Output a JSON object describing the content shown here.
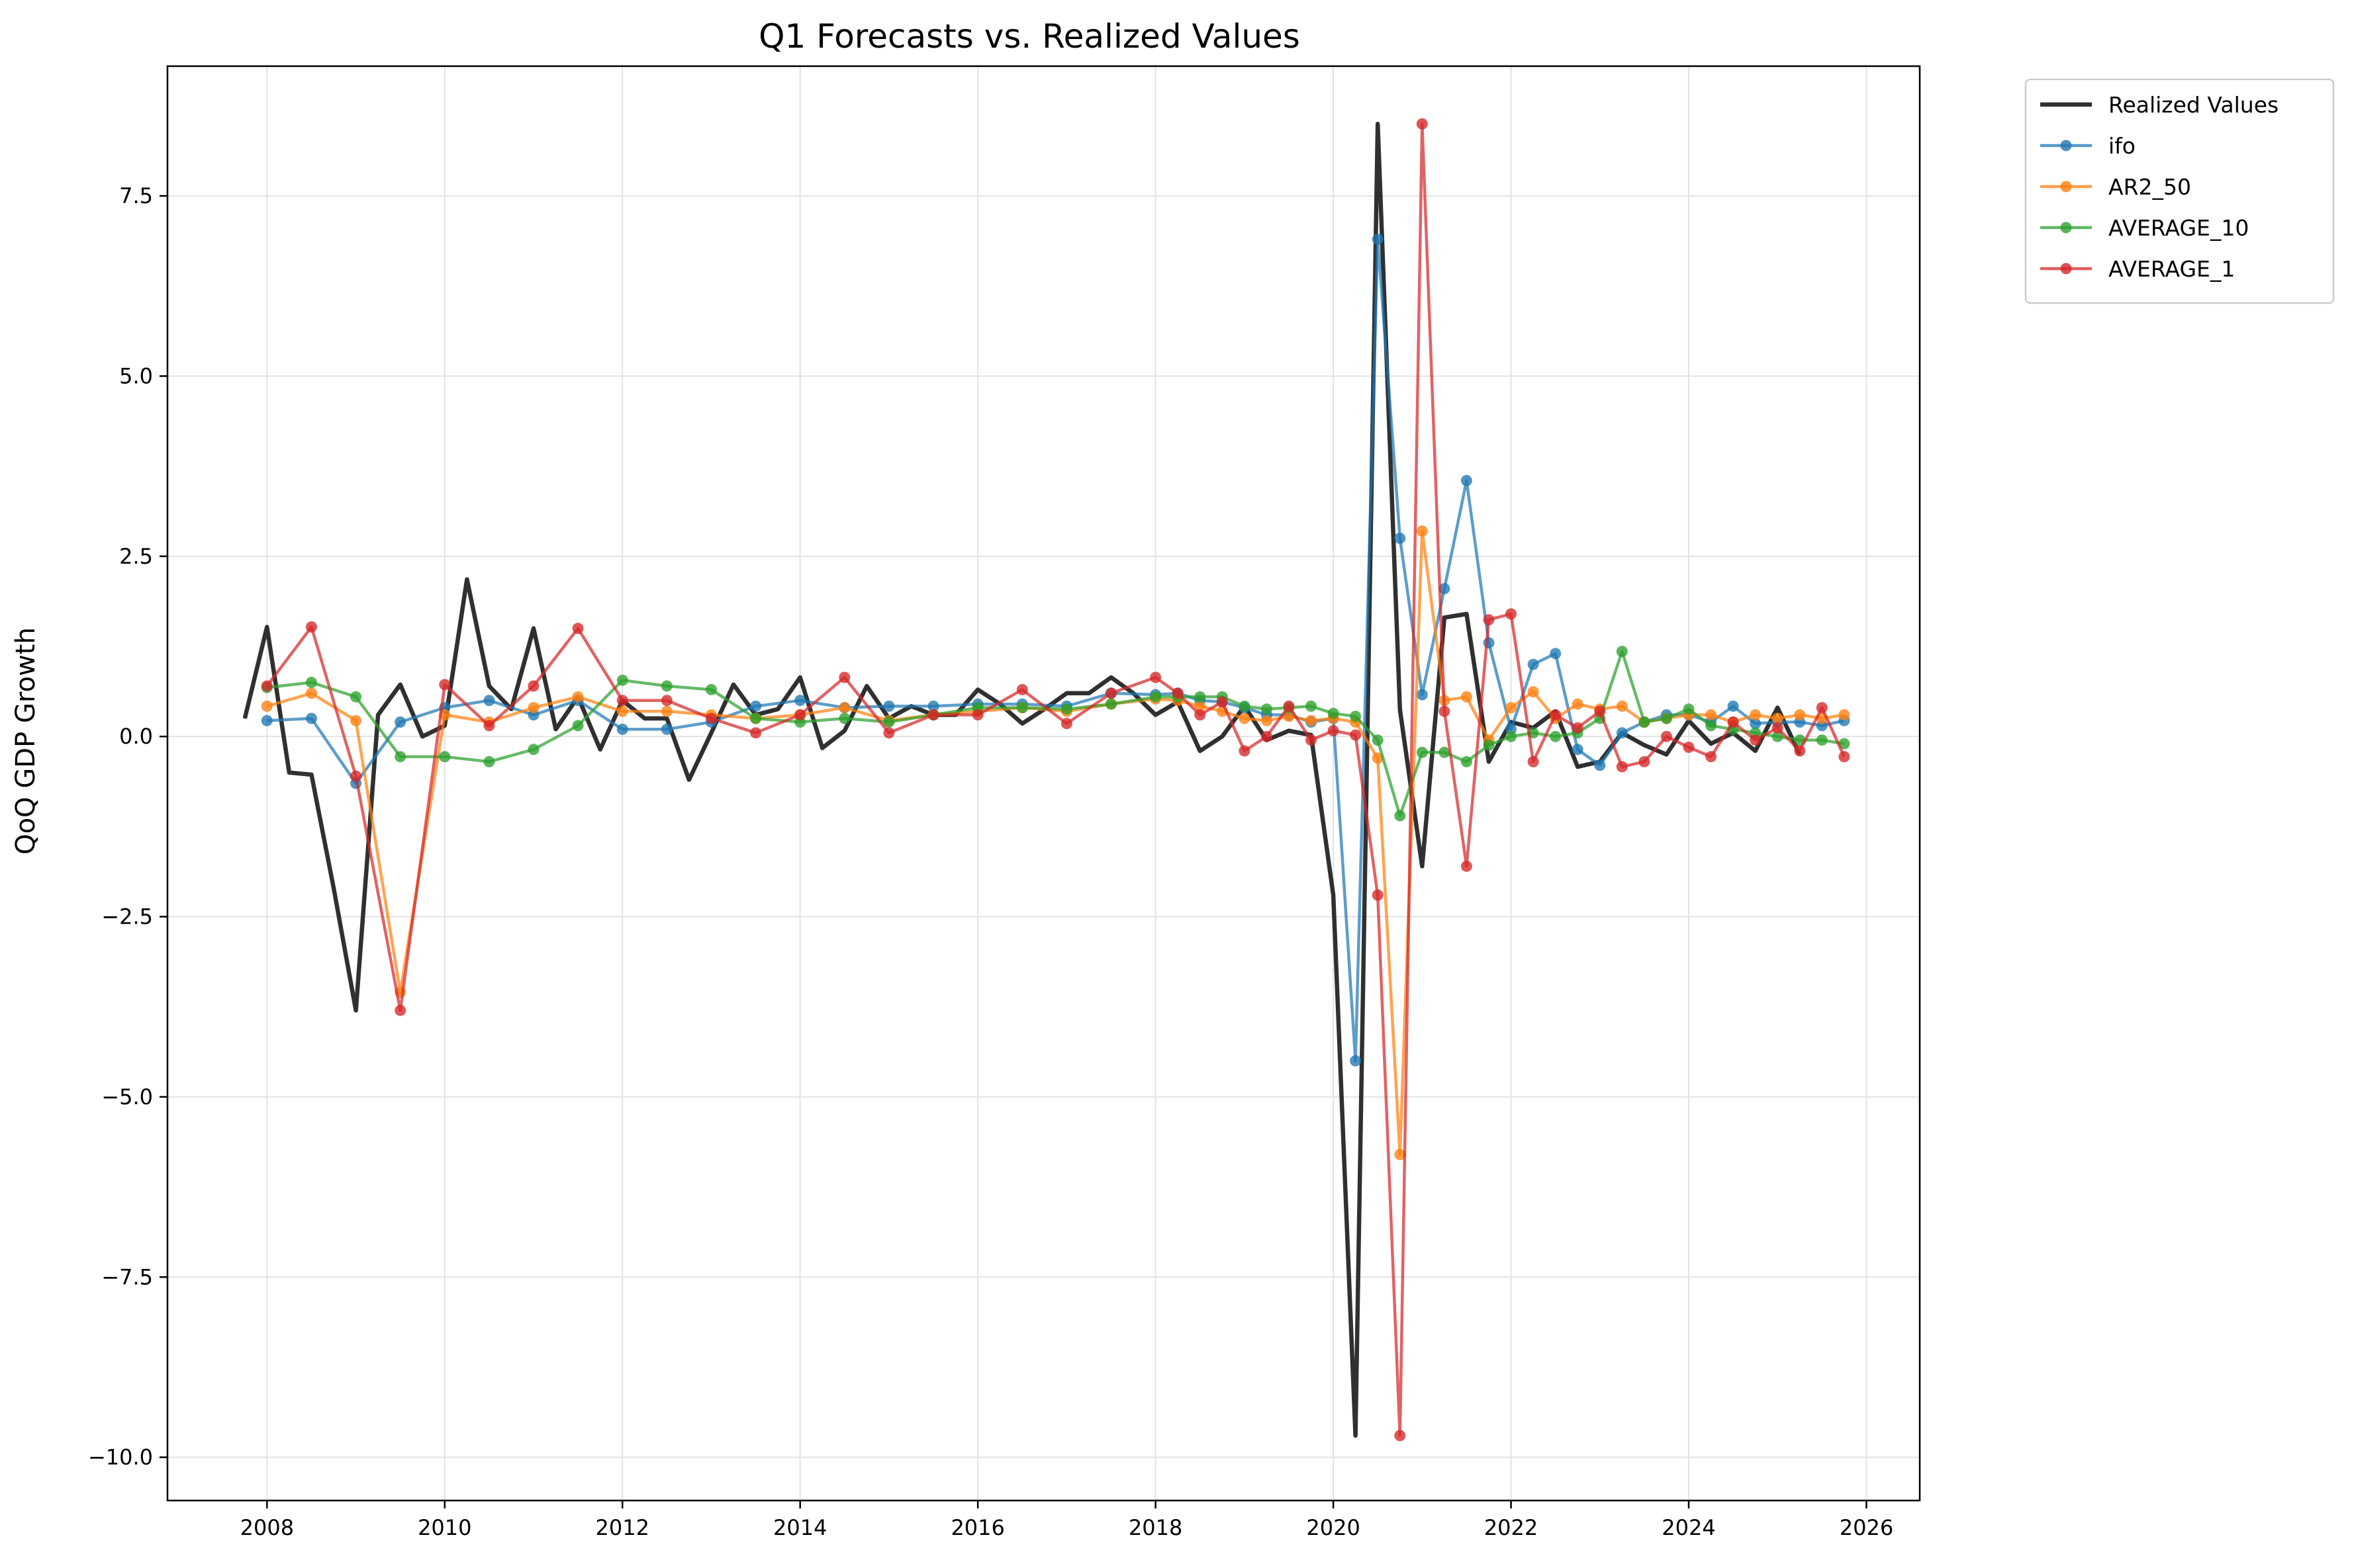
{
  "chart_data": {
    "type": "line",
    "title": "Q1 Forecasts vs. Realized Values",
    "xlabel": "",
    "ylabel": "QoQ GDP Growth",
    "xlim": [
      2006.88,
      2026.6
    ],
    "ylim": [
      -10.6,
      9.3
    ],
    "x_ticks": [
      2008,
      2010,
      2012,
      2014,
      2016,
      2018,
      2020,
      2022,
      2024,
      2026
    ],
    "x_tick_labels": [
      "2008",
      "2010",
      "2012",
      "2014",
      "2016",
      "2018",
      "2020",
      "2022",
      "2024",
      "2026"
    ],
    "y_ticks": [
      -10,
      -7.5,
      -5,
      -2.5,
      0,
      2.5,
      5,
      7.5
    ],
    "y_tick_labels": [
      "−10.0",
      "−7.5",
      "−5.0",
      "−2.5",
      "0.0",
      "2.5",
      "5.0",
      "7.5"
    ],
    "grid": true,
    "legend_position": "outside-top-right",
    "series": [
      {
        "name": "Realized Values",
        "color": "#1a1a1a",
        "style": "line",
        "points": [
          [
            2007.75,
            0.25
          ],
          [
            2008.0,
            1.52
          ],
          [
            2008.25,
            -0.5
          ],
          [
            2008.5,
            -0.53
          ],
          [
            2008.75,
            -2.1
          ],
          [
            2009.0,
            -3.8
          ],
          [
            2009.25,
            0.3
          ],
          [
            2009.5,
            0.72
          ],
          [
            2009.75,
            0.0
          ],
          [
            2010.0,
            0.15
          ],
          [
            2010.25,
            2.18
          ],
          [
            2010.5,
            0.7
          ],
          [
            2010.75,
            0.38
          ],
          [
            2011.0,
            1.5
          ],
          [
            2011.25,
            0.1
          ],
          [
            2011.5,
            0.55
          ],
          [
            2011.75,
            -0.18
          ],
          [
            2012.0,
            0.5
          ],
          [
            2012.25,
            0.25
          ],
          [
            2012.5,
            0.25
          ],
          [
            2012.75,
            -0.6
          ],
          [
            2013.0,
            0.05
          ],
          [
            2013.25,
            0.72
          ],
          [
            2013.5,
            0.3
          ],
          [
            2013.75,
            0.38
          ],
          [
            2014.0,
            0.82
          ],
          [
            2014.25,
            -0.16
          ],
          [
            2014.5,
            0.08
          ],
          [
            2014.75,
            0.7
          ],
          [
            2015.0,
            0.25
          ],
          [
            2015.25,
            0.42
          ],
          [
            2015.5,
            0.3
          ],
          [
            2015.75,
            0.3
          ],
          [
            2016.0,
            0.65
          ],
          [
            2016.25,
            0.45
          ],
          [
            2016.5,
            0.18
          ],
          [
            2016.75,
            0.38
          ],
          [
            2017.0,
            0.6
          ],
          [
            2017.25,
            0.6
          ],
          [
            2017.5,
            0.82
          ],
          [
            2017.75,
            0.6
          ],
          [
            2018.0,
            0.3
          ],
          [
            2018.25,
            0.48
          ],
          [
            2018.5,
            -0.2
          ],
          [
            2018.75,
            0.0
          ],
          [
            2019.0,
            0.42
          ],
          [
            2019.25,
            -0.05
          ],
          [
            2019.5,
            0.08
          ],
          [
            2019.75,
            0.02
          ],
          [
            2020.0,
            -2.2
          ],
          [
            2020.25,
            -9.7
          ],
          [
            2020.5,
            8.5
          ],
          [
            2020.75,
            0.37
          ],
          [
            2021.0,
            -1.8
          ],
          [
            2021.25,
            1.65
          ],
          [
            2021.5,
            1.7
          ],
          [
            2021.75,
            -0.35
          ],
          [
            2022.0,
            0.2
          ],
          [
            2022.25,
            0.12
          ],
          [
            2022.5,
            0.35
          ],
          [
            2022.75,
            -0.42
          ],
          [
            2023.0,
            -0.35
          ],
          [
            2023.25,
            0.05
          ],
          [
            2023.5,
            -0.12
          ],
          [
            2023.75,
            -0.25
          ],
          [
            2024.0,
            0.22
          ],
          [
            2024.25,
            -0.1
          ],
          [
            2024.5,
            0.05
          ],
          [
            2024.75,
            -0.2
          ],
          [
            2025.0,
            0.4
          ],
          [
            2025.25,
            -0.25
          ]
        ]
      },
      {
        "name": "ifo",
        "color": "#1f77b4",
        "style": "line-markers",
        "points": [
          [
            2008.0,
            0.22
          ],
          [
            2008.5,
            0.25
          ],
          [
            2009.0,
            -0.65
          ],
          [
            2009.5,
            0.2
          ],
          [
            2010.0,
            0.4
          ],
          [
            2010.5,
            0.5
          ],
          [
            2011.0,
            0.3
          ],
          [
            2011.5,
            0.5
          ],
          [
            2012.0,
            0.1
          ],
          [
            2012.5,
            0.1
          ],
          [
            2013.0,
            0.2
          ],
          [
            2013.5,
            0.42
          ],
          [
            2014.0,
            0.5
          ],
          [
            2014.5,
            0.4
          ],
          [
            2015.0,
            0.42
          ],
          [
            2015.5,
            0.42
          ],
          [
            2016.0,
            0.45
          ],
          [
            2016.5,
            0.45
          ],
          [
            2017.0,
            0.42
          ],
          [
            2017.5,
            0.6
          ],
          [
            2018.0,
            0.58
          ],
          [
            2018.25,
            0.6
          ],
          [
            2018.5,
            0.5
          ],
          [
            2018.75,
            0.48
          ],
          [
            2019.0,
            0.4
          ],
          [
            2019.25,
            0.3
          ],
          [
            2019.5,
            0.3
          ],
          [
            2019.75,
            0.2
          ],
          [
            2020.0,
            0.25
          ],
          [
            2020.25,
            -4.5
          ],
          [
            2020.5,
            6.9
          ],
          [
            2020.75,
            2.75
          ],
          [
            2021.0,
            0.58
          ],
          [
            2021.25,
            2.05
          ],
          [
            2021.5,
            3.55
          ],
          [
            2021.75,
            1.3
          ],
          [
            2022.0,
            0.1
          ],
          [
            2022.25,
            1.0
          ],
          [
            2022.5,
            1.15
          ],
          [
            2022.75,
            -0.18
          ],
          [
            2023.0,
            -0.4
          ],
          [
            2023.25,
            0.05
          ],
          [
            2023.5,
            0.2
          ],
          [
            2023.75,
            0.3
          ],
          [
            2024.0,
            0.3
          ],
          [
            2024.25,
            0.2
          ],
          [
            2024.5,
            0.42
          ],
          [
            2024.75,
            0.18
          ],
          [
            2025.0,
            0.2
          ],
          [
            2025.25,
            0.2
          ],
          [
            2025.5,
            0.15
          ],
          [
            2025.75,
            0.22
          ]
        ]
      },
      {
        "name": "AR2_50",
        "color": "#ff7f0e",
        "style": "line-markers",
        "points": [
          [
            2008.0,
            0.42
          ],
          [
            2008.5,
            0.6
          ],
          [
            2009.0,
            0.22
          ],
          [
            2009.5,
            -3.55
          ],
          [
            2010.0,
            0.3
          ],
          [
            2010.5,
            0.2
          ],
          [
            2011.0,
            0.4
          ],
          [
            2011.5,
            0.55
          ],
          [
            2012.0,
            0.35
          ],
          [
            2012.5,
            0.35
          ],
          [
            2013.0,
            0.3
          ],
          [
            2013.5,
            0.25
          ],
          [
            2014.0,
            0.3
          ],
          [
            2014.5,
            0.4
          ],
          [
            2015.0,
            0.22
          ],
          [
            2015.5,
            0.3
          ],
          [
            2016.0,
            0.35
          ],
          [
            2016.5,
            0.4
          ],
          [
            2017.0,
            0.35
          ],
          [
            2017.5,
            0.45
          ],
          [
            2018.0,
            0.52
          ],
          [
            2018.25,
            0.5
          ],
          [
            2018.5,
            0.42
          ],
          [
            2018.75,
            0.35
          ],
          [
            2019.0,
            0.25
          ],
          [
            2019.25,
            0.22
          ],
          [
            2019.5,
            0.28
          ],
          [
            2019.75,
            0.22
          ],
          [
            2020.0,
            0.25
          ],
          [
            2020.25,
            0.2
          ],
          [
            2020.5,
            -0.3
          ],
          [
            2020.75,
            -5.8
          ],
          [
            2021.0,
            2.85
          ],
          [
            2021.25,
            0.5
          ],
          [
            2021.5,
            0.55
          ],
          [
            2021.75,
            -0.05
          ],
          [
            2022.0,
            0.4
          ],
          [
            2022.25,
            0.62
          ],
          [
            2022.5,
            0.25
          ],
          [
            2022.75,
            0.45
          ],
          [
            2023.0,
            0.38
          ],
          [
            2023.25,
            0.42
          ],
          [
            2023.5,
            0.2
          ],
          [
            2023.75,
            0.25
          ],
          [
            2024.0,
            0.3
          ],
          [
            2024.25,
            0.3
          ],
          [
            2024.5,
            0.2
          ],
          [
            2024.75,
            0.3
          ],
          [
            2025.0,
            0.25
          ],
          [
            2025.25,
            0.3
          ],
          [
            2025.5,
            0.25
          ],
          [
            2025.75,
            0.3
          ]
        ]
      },
      {
        "name": "AVERAGE_10",
        "color": "#2ca02c",
        "style": "line-markers",
        "points": [
          [
            2008.0,
            0.68
          ],
          [
            2008.5,
            0.75
          ],
          [
            2009.0,
            0.55
          ],
          [
            2009.5,
            -0.28
          ],
          [
            2010.0,
            -0.28
          ],
          [
            2010.5,
            -0.35
          ],
          [
            2011.0,
            -0.18
          ],
          [
            2011.5,
            0.15
          ],
          [
            2012.0,
            0.78
          ],
          [
            2012.5,
            0.7
          ],
          [
            2013.0,
            0.65
          ],
          [
            2013.5,
            0.25
          ],
          [
            2014.0,
            0.2
          ],
          [
            2014.5,
            0.25
          ],
          [
            2015.0,
            0.2
          ],
          [
            2015.5,
            0.3
          ],
          [
            2016.0,
            0.4
          ],
          [
            2016.5,
            0.4
          ],
          [
            2017.0,
            0.38
          ],
          [
            2017.5,
            0.45
          ],
          [
            2018.0,
            0.55
          ],
          [
            2018.25,
            0.55
          ],
          [
            2018.5,
            0.55
          ],
          [
            2018.75,
            0.55
          ],
          [
            2019.0,
            0.42
          ],
          [
            2019.25,
            0.38
          ],
          [
            2019.5,
            0.4
          ],
          [
            2019.75,
            0.42
          ],
          [
            2020.0,
            0.32
          ],
          [
            2020.25,
            0.28
          ],
          [
            2020.5,
            -0.05
          ],
          [
            2020.75,
            -1.1
          ],
          [
            2021.0,
            -0.22
          ],
          [
            2021.25,
            -0.22
          ],
          [
            2021.5,
            -0.35
          ],
          [
            2021.75,
            -0.12
          ],
          [
            2022.0,
            0.0
          ],
          [
            2022.25,
            0.05
          ],
          [
            2022.5,
            0.0
          ],
          [
            2022.75,
            0.05
          ],
          [
            2023.0,
            0.25
          ],
          [
            2023.25,
            1.18
          ],
          [
            2023.5,
            0.2
          ],
          [
            2023.75,
            0.25
          ],
          [
            2024.0,
            0.38
          ],
          [
            2024.25,
            0.15
          ],
          [
            2024.5,
            0.1
          ],
          [
            2024.75,
            0.05
          ],
          [
            2025.0,
            0.0
          ],
          [
            2025.25,
            -0.05
          ],
          [
            2025.5,
            -0.05
          ],
          [
            2025.75,
            -0.1
          ]
        ]
      },
      {
        "name": "AVERAGE_1",
        "color": "#d62728",
        "style": "line-markers",
        "points": [
          [
            2008.0,
            0.7
          ],
          [
            2008.5,
            1.52
          ],
          [
            2009.0,
            -0.55
          ],
          [
            2009.5,
            -3.8
          ],
          [
            2010.0,
            0.72
          ],
          [
            2010.5,
            0.15
          ],
          [
            2011.0,
            0.7
          ],
          [
            2011.5,
            1.5
          ],
          [
            2012.0,
            0.5
          ],
          [
            2012.5,
            0.5
          ],
          [
            2013.0,
            0.25
          ],
          [
            2013.5,
            0.05
          ],
          [
            2014.0,
            0.3
          ],
          [
            2014.5,
            0.82
          ],
          [
            2015.0,
            0.05
          ],
          [
            2015.5,
            0.3
          ],
          [
            2016.0,
            0.3
          ],
          [
            2016.5,
            0.65
          ],
          [
            2017.0,
            0.18
          ],
          [
            2017.5,
            0.6
          ],
          [
            2018.0,
            0.82
          ],
          [
            2018.25,
            0.6
          ],
          [
            2018.5,
            0.3
          ],
          [
            2018.75,
            0.48
          ],
          [
            2019.0,
            -0.2
          ],
          [
            2019.25,
            0.0
          ],
          [
            2019.5,
            0.42
          ],
          [
            2019.75,
            -0.05
          ],
          [
            2020.0,
            0.08
          ],
          [
            2020.25,
            0.02
          ],
          [
            2020.5,
            -2.2
          ],
          [
            2020.75,
            -9.7
          ],
          [
            2021.0,
            8.5
          ],
          [
            2021.25,
            0.35
          ],
          [
            2021.5,
            -1.8
          ],
          [
            2021.75,
            1.62
          ],
          [
            2022.0,
            1.7
          ],
          [
            2022.25,
            -0.35
          ],
          [
            2022.5,
            0.3
          ],
          [
            2022.75,
            0.12
          ],
          [
            2023.0,
            0.35
          ],
          [
            2023.25,
            -0.42
          ],
          [
            2023.5,
            -0.35
          ],
          [
            2023.75,
            0.0
          ],
          [
            2024.0,
            -0.15
          ],
          [
            2024.25,
            -0.28
          ],
          [
            2024.5,
            0.2
          ],
          [
            2024.75,
            -0.05
          ],
          [
            2025.0,
            0.12
          ],
          [
            2025.25,
            -0.2
          ],
          [
            2025.5,
            0.4
          ],
          [
            2025.75,
            -0.28
          ]
        ]
      }
    ]
  }
}
